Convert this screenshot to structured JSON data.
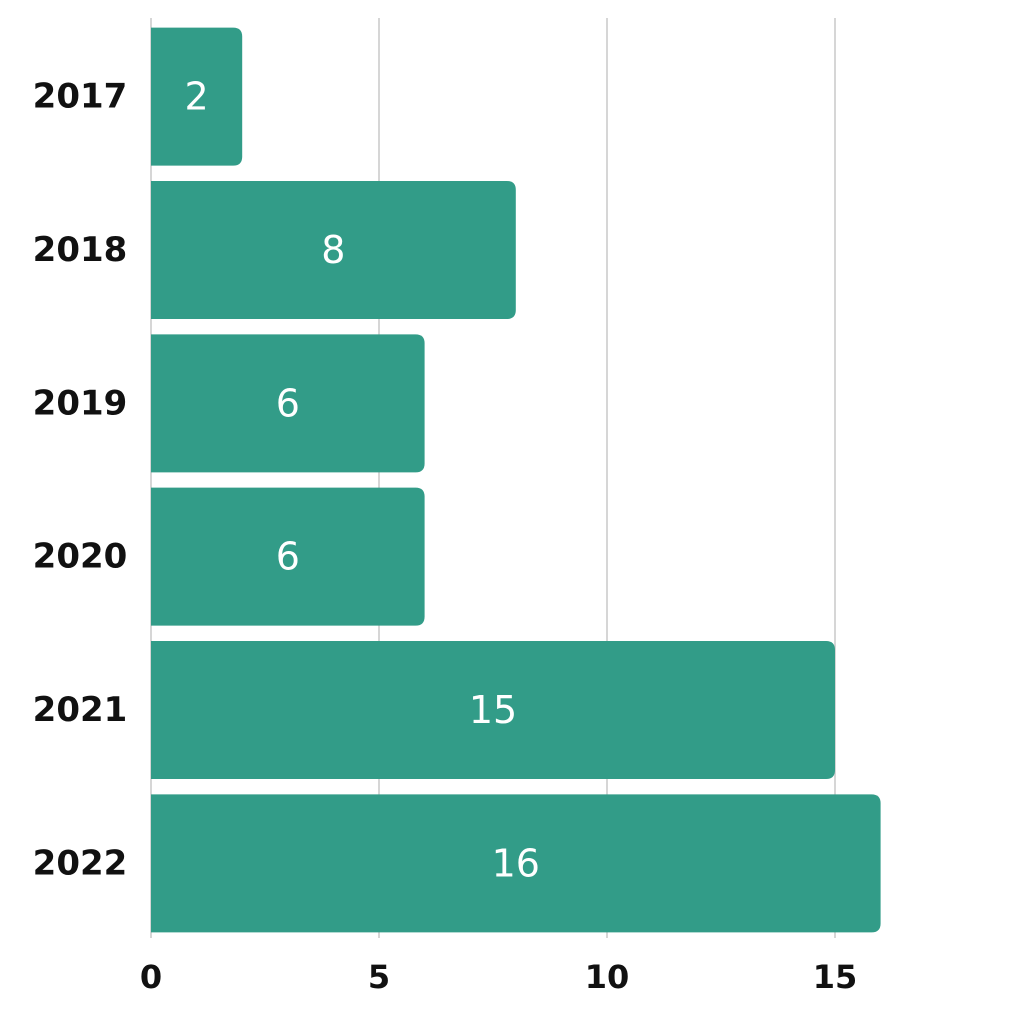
{
  "chart_data": {
    "type": "bar",
    "orientation": "horizontal",
    "categories": [
      "2017",
      "2018",
      "2019",
      "2020",
      "2021",
      "2022"
    ],
    "values": [
      2,
      8,
      6,
      6,
      15,
      16
    ],
    "xlim": [
      0,
      19
    ],
    "xticks": [
      0,
      5,
      10,
      15
    ],
    "grid": true,
    "title": "",
    "xlabel": "",
    "ylabel": "",
    "bar_color": "#329c88"
  }
}
